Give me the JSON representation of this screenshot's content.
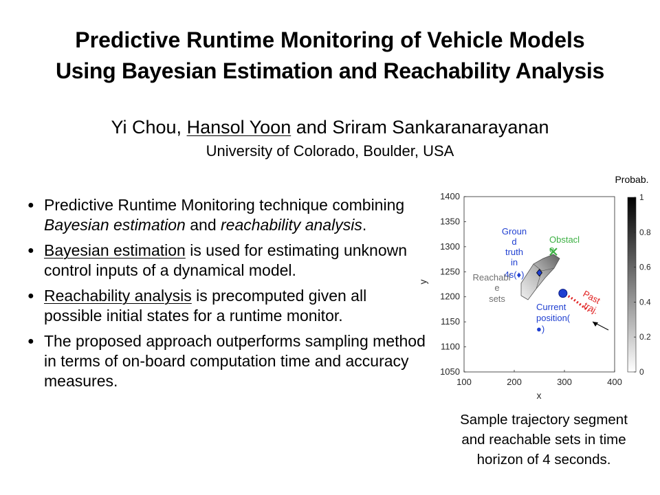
{
  "paper": {
    "title_line1": "Predictive Runtime Monitoring of Vehicle Models",
    "title_line2": "Using Bayesian Estimation and Reachability Analysis",
    "authors": {
      "author1": "Yi Chou,",
      "author2": "Hansol Yoon",
      "conj": "and",
      "author3": "Sriram Sankaranarayanan"
    },
    "affiliation": "University of Colorado, Boulder, USA"
  },
  "bullets": [
    {
      "parts": [
        "Predictive Runtime Monitoring technique combining ",
        "Bayesian estimation",
        " and ",
        "reachability analysis",
        "."
      ]
    },
    {
      "parts": [
        "Bayesian estimation",
        " is used for estimating unknown control inputs of a dynamical model."
      ]
    },
    {
      "parts": [
        "Reachability analysis",
        " is precomputed given all possible initial states for a runtime monitor."
      ]
    },
    {
      "parts": [
        "The proposed approach outperforms sampling method in terms of on-board computation time and accuracy measures."
      ]
    }
  ],
  "caption": {
    "line1": "Sample trajectory segment",
    "line2": "and reachable sets in time",
    "line3": "horizon of 4 seconds."
  },
  "chart_data": {
    "type": "scatter",
    "xlabel": "x",
    "ylabel": "y",
    "xlim": [
      100,
      400
    ],
    "ylim": [
      1050,
      1400
    ],
    "xticks": [
      "100",
      "200",
      "300",
      "400"
    ],
    "yticks": [
      "1050",
      "1100",
      "1150",
      "1200",
      "1250",
      "1300",
      "1350",
      "1400"
    ],
    "colorbar": {
      "title": "Probab.",
      "ticks": [
        "0",
        "0.2",
        "0.4",
        "0.6",
        "0.8",
        "1"
      ]
    },
    "annotations": {
      "ground_truth": [
        "Groun",
        "d",
        "truth",
        "in",
        "4s(♦)"
      ],
      "obstacle": [
        "Obstacl",
        "e"
      ],
      "reachable": [
        "Reachabl",
        "e",
        "sets"
      ],
      "current": [
        "Current",
        "position(",
        "●)"
      ],
      "past": [
        "Past",
        "traj."
      ]
    },
    "points": {
      "current_position": {
        "x": 297,
        "y": 1207
      },
      "ground_truth_4s": {
        "x": 250,
        "y": 1248
      },
      "obstacle": {
        "x": 278,
        "y": 1290
      }
    },
    "past_trajectory": [
      [
        302,
        1205
      ],
      [
        318,
        1195
      ],
      [
        335,
        1182
      ],
      [
        348,
        1172
      ]
    ],
    "colors": {
      "blue": "#1f3fd1",
      "obstacle": "#3cb043",
      "past": "#e02020",
      "label_gray": "#707070"
    }
  }
}
